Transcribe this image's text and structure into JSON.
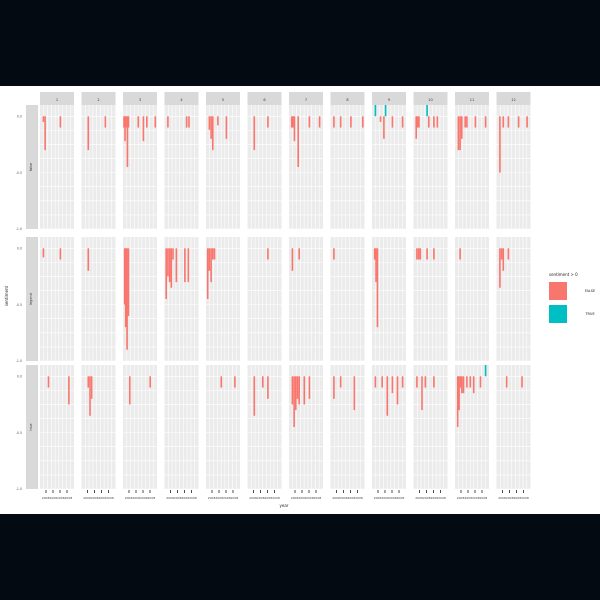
{
  "chart_data": {
    "type": "bar",
    "xlabel": "year",
    "ylabel": "sentiment",
    "facet_columns": [
      "1",
      "2",
      "3",
      "4",
      "5",
      "6",
      "7",
      "8",
      "9",
      "10",
      "11",
      "12"
    ],
    "facet_rows": [
      "false",
      "legend",
      "true"
    ],
    "x_tick_label": "2008200820082008",
    "ylim": [
      -1.0,
      0.1
    ],
    "y_ticks": [
      0.0,
      -0.5,
      -1.0
    ],
    "y_tick_labels": [
      "0.0",
      "-0.5",
      "-1.0"
    ],
    "legend": {
      "title": "sentiment > 0",
      "position": "right",
      "entries": [
        {
          "label": "FALSE",
          "color": "#F8766D"
        },
        {
          "label": "TRUE",
          "color": "#00BFC4"
        }
      ]
    },
    "panels": [
      {
        "row": 0,
        "col": 0,
        "bars": [
          {
            "x": 0.1,
            "y": -0.05
          },
          {
            "x": 0.15,
            "y": -0.3
          },
          {
            "x": 0.6,
            "y": -0.1
          }
        ]
      },
      {
        "row": 0,
        "col": 1,
        "bars": [
          {
            "x": 0.2,
            "y": -0.3
          },
          {
            "x": 0.7,
            "y": -0.1
          }
        ]
      },
      {
        "row": 0,
        "col": 2,
        "bars": [
          {
            "x": 0.03,
            "y": -0.1
          },
          {
            "x": 0.06,
            "y": -0.22
          },
          {
            "x": 0.09,
            "y": -0.1
          },
          {
            "x": 0.13,
            "y": -0.45
          },
          {
            "x": 0.16,
            "y": -0.1
          },
          {
            "x": 0.45,
            "y": -0.1
          },
          {
            "x": 0.6,
            "y": -0.22
          },
          {
            "x": 0.7,
            "y": -0.1
          },
          {
            "x": 0.95,
            "y": -0.1
          }
        ]
      },
      {
        "row": 0,
        "col": 3,
        "bars": [
          {
            "x": 0.1,
            "y": -0.1
          },
          {
            "x": 0.65,
            "y": -0.1
          },
          {
            "x": 0.72,
            "y": -0.1
          }
        ]
      },
      {
        "row": 0,
        "col": 4,
        "bars": [
          {
            "x": 0.1,
            "y": -0.12
          },
          {
            "x": 0.15,
            "y": -0.2
          },
          {
            "x": 0.2,
            "y": -0.3
          },
          {
            "x": 0.35,
            "y": -0.08
          },
          {
            "x": 0.6,
            "y": -0.2
          }
        ]
      },
      {
        "row": 0,
        "col": 5,
        "bars": [
          {
            "x": 0.2,
            "y": -0.3
          },
          {
            "x": 0.6,
            "y": -0.1
          }
        ]
      },
      {
        "row": 0,
        "col": 6,
        "bars": [
          {
            "x": 0.08,
            "y": -0.1
          },
          {
            "x": 0.12,
            "y": -0.1
          },
          {
            "x": 0.16,
            "y": -0.22
          },
          {
            "x": 0.27,
            "y": -0.45
          },
          {
            "x": 0.6,
            "y": -0.1
          },
          {
            "x": 0.9,
            "y": -0.1
          }
        ]
      },
      {
        "row": 0,
        "col": 7,
        "bars": [
          {
            "x": 0.1,
            "y": -0.1
          },
          {
            "x": 0.3,
            "y": -0.1
          },
          {
            "x": 0.6,
            "y": -0.1
          },
          {
            "x": 0.95,
            "y": -0.1
          }
        ]
      },
      {
        "row": 0,
        "col": 8,
        "bars": [
          {
            "x": 0.1,
            "y": 0.1
          },
          {
            "x": 0.25,
            "y": -0.05
          },
          {
            "x": 0.35,
            "y": -0.2
          },
          {
            "x": 0.4,
            "y": 0.1
          },
          {
            "x": 0.6,
            "y": -0.1
          },
          {
            "x": 0.9,
            "y": -0.1
          }
        ]
      },
      {
        "row": 0,
        "col": 9,
        "bars": [
          {
            "x": 0.08,
            "y": -0.2
          },
          {
            "x": 0.12,
            "y": -0.1
          },
          {
            "x": 0.16,
            "y": -0.1
          },
          {
            "x": 0.4,
            "y": 0.1
          },
          {
            "x": 0.45,
            "y": -0.1
          },
          {
            "x": 0.6,
            "y": -0.1
          },
          {
            "x": 0.7,
            "y": -0.1
          }
        ]
      },
      {
        "row": 0,
        "col": 10,
        "bars": [
          {
            "x": 0.1,
            "y": -0.3
          },
          {
            "x": 0.15,
            "y": -0.3
          },
          {
            "x": 0.2,
            "y": -0.2
          },
          {
            "x": 0.3,
            "y": -0.1
          },
          {
            "x": 0.35,
            "y": -0.1
          },
          {
            "x": 0.6,
            "y": -0.1
          },
          {
            "x": 0.9,
            "y": -0.1
          }
        ]
      },
      {
        "row": 0,
        "col": 11,
        "bars": [
          {
            "x": 0.1,
            "y": -0.5
          },
          {
            "x": 0.2,
            "y": -0.1
          },
          {
            "x": 0.35,
            "y": -0.1
          },
          {
            "x": 0.65,
            "y": -0.1
          },
          {
            "x": 0.9,
            "y": -0.1
          }
        ]
      },
      {
        "row": 1,
        "col": 0,
        "bars": [
          {
            "x": 0.1,
            "y": -0.08
          },
          {
            "x": 0.6,
            "y": -0.1
          }
        ]
      },
      {
        "row": 1,
        "col": 1,
        "bars": [
          {
            "x": 0.2,
            "y": -0.2
          }
        ]
      },
      {
        "row": 1,
        "col": 2,
        "bars": [
          {
            "x": 0.05,
            "y": -0.5
          },
          {
            "x": 0.08,
            "y": -0.7
          },
          {
            "x": 0.12,
            "y": -0.9
          },
          {
            "x": 0.16,
            "y": -0.6
          }
        ]
      },
      {
        "row": 1,
        "col": 3,
        "bars": [
          {
            "x": 0.05,
            "y": -0.45
          },
          {
            "x": 0.1,
            "y": -0.25
          },
          {
            "x": 0.15,
            "y": -0.3
          },
          {
            "x": 0.2,
            "y": -0.35
          },
          {
            "x": 0.25,
            "y": -0.1
          },
          {
            "x": 0.35,
            "y": -0.3
          },
          {
            "x": 0.6,
            "y": -0.3
          },
          {
            "x": 0.7,
            "y": -0.3
          }
        ]
      },
      {
        "row": 1,
        "col": 4,
        "bars": [
          {
            "x": 0.05,
            "y": -0.45
          },
          {
            "x": 0.1,
            "y": -0.2
          },
          {
            "x": 0.15,
            "y": -0.3
          },
          {
            "x": 0.2,
            "y": -0.1
          },
          {
            "x": 0.25,
            "y": -0.1
          }
        ]
      },
      {
        "row": 1,
        "col": 5,
        "bars": [
          {
            "x": 0.6,
            "y": -0.1
          }
        ]
      },
      {
        "row": 1,
        "col": 6,
        "bars": [
          {
            "x": 0.1,
            "y": -0.2
          },
          {
            "x": 0.3,
            "y": -0.1
          }
        ]
      },
      {
        "row": 1,
        "col": 7,
        "bars": [
          {
            "x": 0.1,
            "y": -0.1
          }
        ]
      },
      {
        "row": 1,
        "col": 8,
        "bars": [
          {
            "x": 0.08,
            "y": -0.1
          },
          {
            "x": 0.12,
            "y": -0.3
          },
          {
            "x": 0.16,
            "y": -0.7
          }
        ]
      },
      {
        "row": 1,
        "col": 9,
        "bars": [
          {
            "x": 0.1,
            "y": -0.1
          },
          {
            "x": 0.15,
            "y": -0.1
          },
          {
            "x": 0.2,
            "y": -0.1
          },
          {
            "x": 0.4,
            "y": -0.1
          },
          {
            "x": 0.6,
            "y": -0.1
          }
        ]
      },
      {
        "row": 1,
        "col": 10,
        "bars": [
          {
            "x": 0.15,
            "y": -0.1
          }
        ]
      },
      {
        "row": 1,
        "col": 11,
        "bars": [
          {
            "x": 0.1,
            "y": -0.35
          },
          {
            "x": 0.15,
            "y": -0.1
          },
          {
            "x": 0.2,
            "y": -0.2
          },
          {
            "x": 0.35,
            "y": -0.1
          }
        ]
      },
      {
        "row": 2,
        "col": 0,
        "bars": [
          {
            "x": 0.25,
            "y": -0.1
          },
          {
            "x": 0.85,
            "y": -0.25
          }
        ]
      },
      {
        "row": 2,
        "col": 1,
        "bars": [
          {
            "x": 0.2,
            "y": -0.1
          },
          {
            "x": 0.25,
            "y": -0.35
          },
          {
            "x": 0.3,
            "y": -0.2
          }
        ]
      },
      {
        "row": 2,
        "col": 2,
        "bars": [
          {
            "x": 0.2,
            "y": -0.25
          },
          {
            "x": 0.8,
            "y": -0.1
          }
        ]
      },
      {
        "row": 2,
        "col": 3,
        "bars": []
      },
      {
        "row": 2,
        "col": 4,
        "bars": [
          {
            "x": 0.45,
            "y": -0.1
          },
          {
            "x": 0.85,
            "y": -0.1
          }
        ]
      },
      {
        "row": 2,
        "col": 5,
        "bars": [
          {
            "x": 0.2,
            "y": -0.35
          },
          {
            "x": 0.45,
            "y": -0.1
          },
          {
            "x": 0.6,
            "y": -0.2
          }
        ]
      },
      {
        "row": 2,
        "col": 6,
        "bars": [
          {
            "x": 0.1,
            "y": -0.25
          },
          {
            "x": 0.15,
            "y": -0.45
          },
          {
            "x": 0.2,
            "y": -0.3
          },
          {
            "x": 0.25,
            "y": -0.2
          },
          {
            "x": 0.3,
            "y": -0.25
          },
          {
            "x": 0.45,
            "y": -0.25
          },
          {
            "x": 0.6,
            "y": -0.2
          }
        ]
      },
      {
        "row": 2,
        "col": 7,
        "bars": [
          {
            "x": 0.1,
            "y": -0.2
          },
          {
            "x": 0.3,
            "y": -0.1
          },
          {
            "x": 0.7,
            "y": -0.3
          }
        ]
      },
      {
        "row": 2,
        "col": 8,
        "bars": [
          {
            "x": 0.1,
            "y": -0.1
          },
          {
            "x": 0.3,
            "y": -0.1
          },
          {
            "x": 0.45,
            "y": -0.35
          },
          {
            "x": 0.6,
            "y": -0.15
          },
          {
            "x": 0.75,
            "y": -0.25
          },
          {
            "x": 0.9,
            "y": -0.1
          }
        ]
      },
      {
        "row": 2,
        "col": 9,
        "bars": [
          {
            "x": 0.1,
            "y": -0.1
          },
          {
            "x": 0.25,
            "y": -0.3
          },
          {
            "x": 0.35,
            "y": -0.1
          },
          {
            "x": 0.6,
            "y": -0.1
          }
        ]
      },
      {
        "row": 2,
        "col": 10,
        "bars": [
          {
            "x": 0.08,
            "y": -0.45
          },
          {
            "x": 0.12,
            "y": -0.3
          },
          {
            "x": 0.16,
            "y": -0.1
          },
          {
            "x": 0.2,
            "y": -0.15
          },
          {
            "x": 0.25,
            "y": -0.15
          },
          {
            "x": 0.35,
            "y": -0.1
          },
          {
            "x": 0.45,
            "y": -0.1
          },
          {
            "x": 0.55,
            "y": -0.15
          },
          {
            "x": 0.75,
            "y": -0.1
          },
          {
            "x": 0.9,
            "y": 0.1
          }
        ]
      },
      {
        "row": 2,
        "col": 11,
        "bars": [
          {
            "x": 0.3,
            "y": -0.1
          },
          {
            "x": 0.75,
            "y": -0.1
          }
        ]
      }
    ]
  }
}
